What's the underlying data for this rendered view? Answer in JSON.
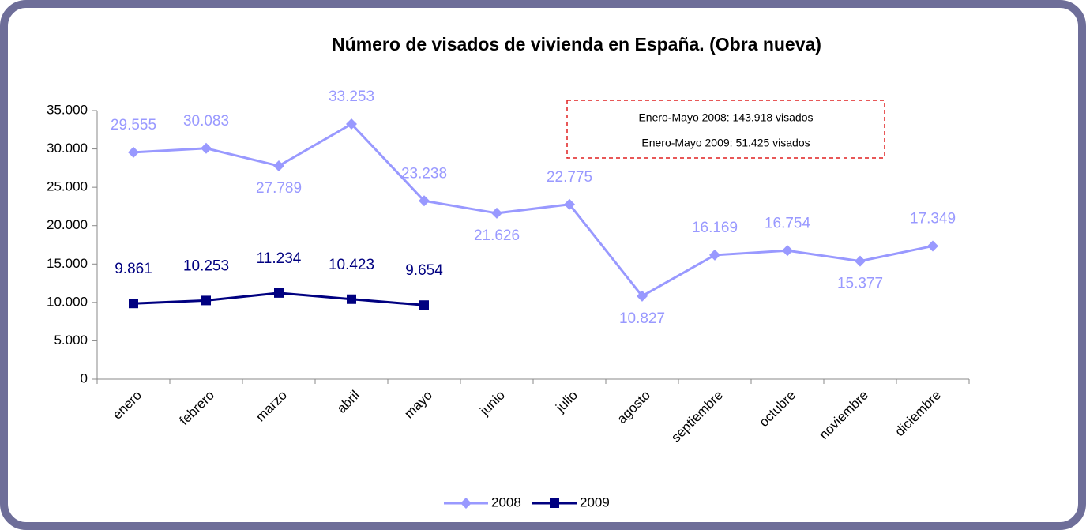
{
  "chart_data": {
    "type": "line",
    "title": "Número de visados de vivienda en España. (Obra nueva)",
    "categories": [
      "enero",
      "febrero",
      "marzo",
      "abril",
      "mayo",
      "junio",
      "julio",
      "agosto",
      "septiembre",
      "octubre",
      "noviembre",
      "diciembre"
    ],
    "series": [
      {
        "name": "2008",
        "color": "#9999ff",
        "marker": "diamond",
        "values": [
          29555,
          30083,
          27789,
          33253,
          23238,
          21626,
          22775,
          10827,
          16169,
          16754,
          15377,
          17349
        ],
        "value_labels": [
          "29.555",
          "30.083",
          "27.789",
          "33.253",
          "23.238",
          "21.626",
          "22.775",
          "10.827",
          "16.169",
          "16.754",
          "15.377",
          "17.349"
        ]
      },
      {
        "name": "2009",
        "color": "#000080",
        "marker": "square",
        "values": [
          9861,
          10253,
          11234,
          10423,
          9654,
          null,
          null,
          null,
          null,
          null,
          null,
          null
        ],
        "value_labels": [
          "9.861",
          "10.253",
          "11.234",
          "10.423",
          "9.654",
          null,
          null,
          null,
          null,
          null,
          null,
          null
        ]
      }
    ],
    "ylim": [
      0,
      35000
    ],
    "yticks": [
      0,
      {
        "value": 5000,
        "label": "5.000"
      },
      {
        "value": 10000,
        "label": "10.000"
      },
      {
        "value": 15000,
        "label": "15.000"
      },
      {
        "value": 20000,
        "label": "20.000"
      },
      {
        "value": 25000,
        "label": "25.000"
      },
      {
        "value": 30000,
        "label": "30.000"
      },
      {
        "value": 35000,
        "label": "35.000"
      }
    ],
    "grid": false,
    "legend": "bottom",
    "annotations": [
      "Enero-Mayo 2008: 143.918 visados",
      "Enero-Mayo 2009: 51.425 visados"
    ]
  }
}
